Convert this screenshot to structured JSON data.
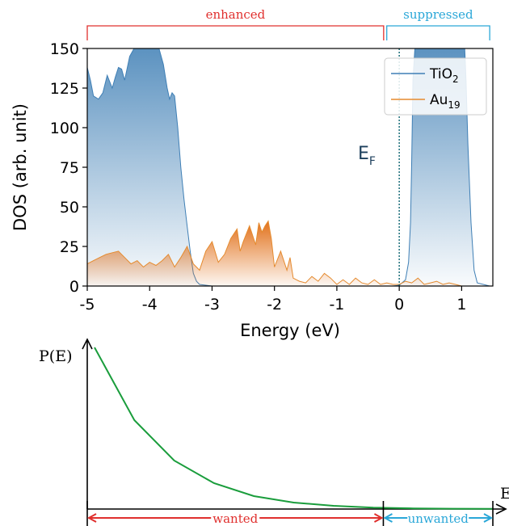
{
  "chart_data": [
    {
      "type": "area",
      "xlabel": "Energy (eV)",
      "ylabel": "DOS (arb. unit)",
      "xlim": [
        -5,
        1.5
      ],
      "ylim": [
        0,
        150
      ],
      "xticks": [
        -5,
        -4,
        -3,
        -2,
        -1,
        0,
        1
      ],
      "yticks": [
        0,
        25,
        50,
        75,
        100,
        125,
        150
      ],
      "grid": false,
      "legend_position": "top-right",
      "fermi_level": {
        "label": "E",
        "sub": "F",
        "x": 0
      },
      "region_brackets": [
        {
          "label": "enhanced",
          "from": -5,
          "to": -0.25,
          "color": "#e0302e"
        },
        {
          "label": "suppressed",
          "from": -0.2,
          "to": 1.45,
          "color": "#2aa7d8"
        }
      ],
      "series": [
        {
          "name": "TiO",
          "sub": "2",
          "color": "#3f7fb5",
          "x": [
            -5.0,
            -4.95,
            -4.9,
            -4.82,
            -4.75,
            -4.68,
            -4.6,
            -4.55,
            -4.5,
            -4.45,
            -4.4,
            -4.32,
            -4.25,
            -4.18,
            -4.1,
            -3.98,
            -3.85,
            -3.78,
            -3.72,
            -3.68,
            -3.64,
            -3.6,
            -3.55,
            -3.5,
            -3.45,
            -3.4,
            -3.35,
            -3.3,
            -3.25,
            -3.2,
            -3.1,
            -3.0,
            -2.5,
            -2.0,
            -1.5,
            -1.0,
            -0.5,
            -0.1,
            0.0,
            0.1,
            0.15,
            0.18,
            0.2,
            0.22,
            0.25,
            1.05,
            1.07,
            1.1,
            1.15,
            1.2,
            1.25,
            1.45
          ],
          "y": [
            138,
            130,
            120,
            118,
            122,
            133,
            125,
            132,
            138,
            137,
            130,
            145,
            150,
            150,
            150,
            150,
            150,
            140,
            125,
            118,
            122,
            120,
            100,
            75,
            55,
            38,
            22,
            8,
            3,
            1,
            0.5,
            0,
            0,
            0,
            0,
            0,
            0,
            0,
            0.5,
            4,
            15,
            40,
            80,
            130,
            150,
            150,
            130,
            90,
            40,
            10,
            2,
            0
          ]
        },
        {
          "name": "Au",
          "sub": "19",
          "color": "#e58a2e",
          "x": [
            -5.0,
            -4.9,
            -4.8,
            -4.7,
            -4.6,
            -4.5,
            -4.4,
            -4.3,
            -4.2,
            -4.1,
            -4.0,
            -3.9,
            -3.8,
            -3.7,
            -3.6,
            -3.5,
            -3.4,
            -3.3,
            -3.2,
            -3.1,
            -3.0,
            -2.9,
            -2.8,
            -2.7,
            -2.6,
            -2.55,
            -2.5,
            -2.4,
            -2.3,
            -2.25,
            -2.2,
            -2.15,
            -2.1,
            -2.05,
            -2.0,
            -1.9,
            -1.8,
            -1.75,
            -1.7,
            -1.6,
            -1.5,
            -1.4,
            -1.3,
            -1.2,
            -1.1,
            -1.0,
            -0.9,
            -0.8,
            -0.7,
            -0.6,
            -0.5,
            -0.4,
            -0.3,
            -0.2,
            -0.1,
            0.0,
            0.1,
            0.2,
            0.3,
            0.4,
            0.5,
            0.6,
            0.7,
            0.8,
            0.9,
            1.0
          ],
          "y": [
            14,
            16,
            18,
            20,
            21,
            22,
            18,
            14,
            16,
            12,
            15,
            13,
            16,
            20,
            12,
            18,
            25,
            14,
            10,
            22,
            28,
            15,
            20,
            30,
            36,
            22,
            28,
            38,
            26,
            40,
            34,
            38,
            41,
            30,
            12,
            22,
            10,
            18,
            5,
            3,
            2,
            6,
            3,
            8,
            5,
            1,
            4,
            1,
            5,
            2,
            1,
            4,
            1,
            2,
            1,
            1,
            3,
            2,
            5,
            1,
            2,
            3,
            1,
            2,
            1,
            0
          ]
        }
      ]
    },
    {
      "type": "line",
      "ylabel": "P(E)",
      "xlabel": "E",
      "series": [
        {
          "color": "#1a9d3c",
          "x": [
            0.0,
            0.1,
            0.2,
            0.3,
            0.4,
            0.5,
            0.6,
            0.7,
            0.8,
            0.9,
            1.0
          ],
          "y": [
            1.0,
            0.55,
            0.3,
            0.16,
            0.08,
            0.04,
            0.02,
            0.009,
            0.004,
            0.002,
            0.001
          ]
        }
      ],
      "regions": [
        {
          "label": "wanted",
          "from": 0.0,
          "to": 0.73,
          "color": "#e0302e"
        },
        {
          "label": "unwanted",
          "from": 0.73,
          "to": 1.0,
          "color": "#2aa7d8"
        }
      ]
    }
  ]
}
